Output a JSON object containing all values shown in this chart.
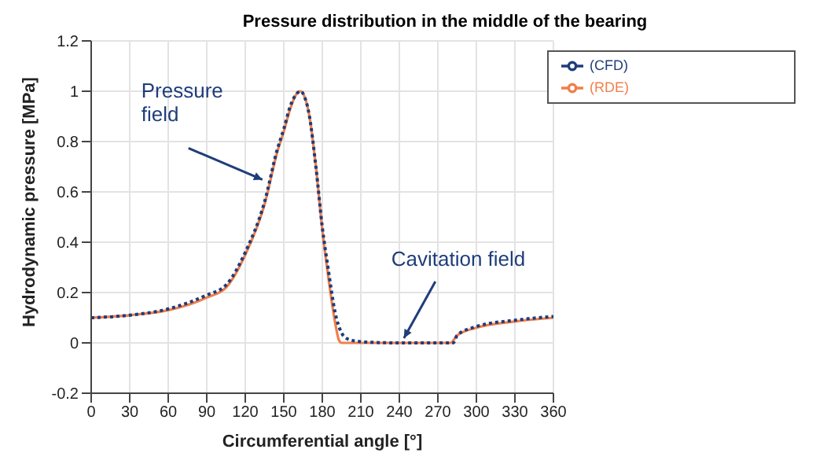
{
  "chart_data": {
    "type": "line",
    "title": "Pressure distribution in the middle of the bearing",
    "xlabel": "Circumferential angle [°]",
    "ylabel": "Hydrodynamic pressure [MPa]",
    "xlim": [
      0,
      360
    ],
    "xticks": [
      0,
      30,
      60,
      90,
      120,
      150,
      180,
      210,
      240,
      270,
      300,
      330,
      360
    ],
    "ylim": [
      -0.2,
      1.2
    ],
    "yticks": [
      -0.2,
      0,
      0.2,
      0.4,
      0.6,
      0.8,
      1,
      1.2
    ],
    "grid": true,
    "legend": "top right",
    "series": [
      {
        "name": "(RDE)",
        "color": "#f07f4a",
        "line_style": "solid",
        "x": [
          0,
          30,
          60,
          90,
          105,
          120,
          135,
          145,
          150,
          155,
          160,
          163,
          166,
          170,
          175,
          180,
          185,
          190,
          193,
          195,
          240,
          280,
          285,
          300,
          330,
          360
        ],
        "values": [
          0.1,
          0.11,
          0.13,
          0.18,
          0.22,
          0.35,
          0.55,
          0.76,
          0.84,
          0.93,
          0.99,
          1.0,
          0.98,
          0.9,
          0.7,
          0.45,
          0.25,
          0.08,
          0.01,
          0,
          0,
          0,
          0.03,
          0.06,
          0.085,
          0.1
        ]
      },
      {
        "name": "(CFD)",
        "color": "#1f3d7a",
        "line_style": "dotted",
        "x": [
          0,
          30,
          60,
          90,
          105,
          120,
          135,
          145,
          150,
          155,
          160,
          163,
          166,
          170,
          175,
          180,
          185,
          190,
          195,
          200,
          210,
          220,
          240,
          282,
          285,
          300,
          330,
          360
        ],
        "values": [
          0.1,
          0.11,
          0.135,
          0.19,
          0.23,
          0.36,
          0.56,
          0.77,
          0.85,
          0.94,
          0.99,
          1.0,
          0.98,
          0.9,
          0.7,
          0.46,
          0.28,
          0.12,
          0.04,
          0.015,
          0.005,
          0.002,
          0,
          0,
          0.03,
          0.065,
          0.09,
          0.105
        ]
      }
    ],
    "annotations": [
      {
        "text": "Pressure field",
        "x": 137,
        "y": 0.63
      },
      {
        "text": "Cavitation field",
        "x": 246,
        "y": 0
      }
    ]
  }
}
